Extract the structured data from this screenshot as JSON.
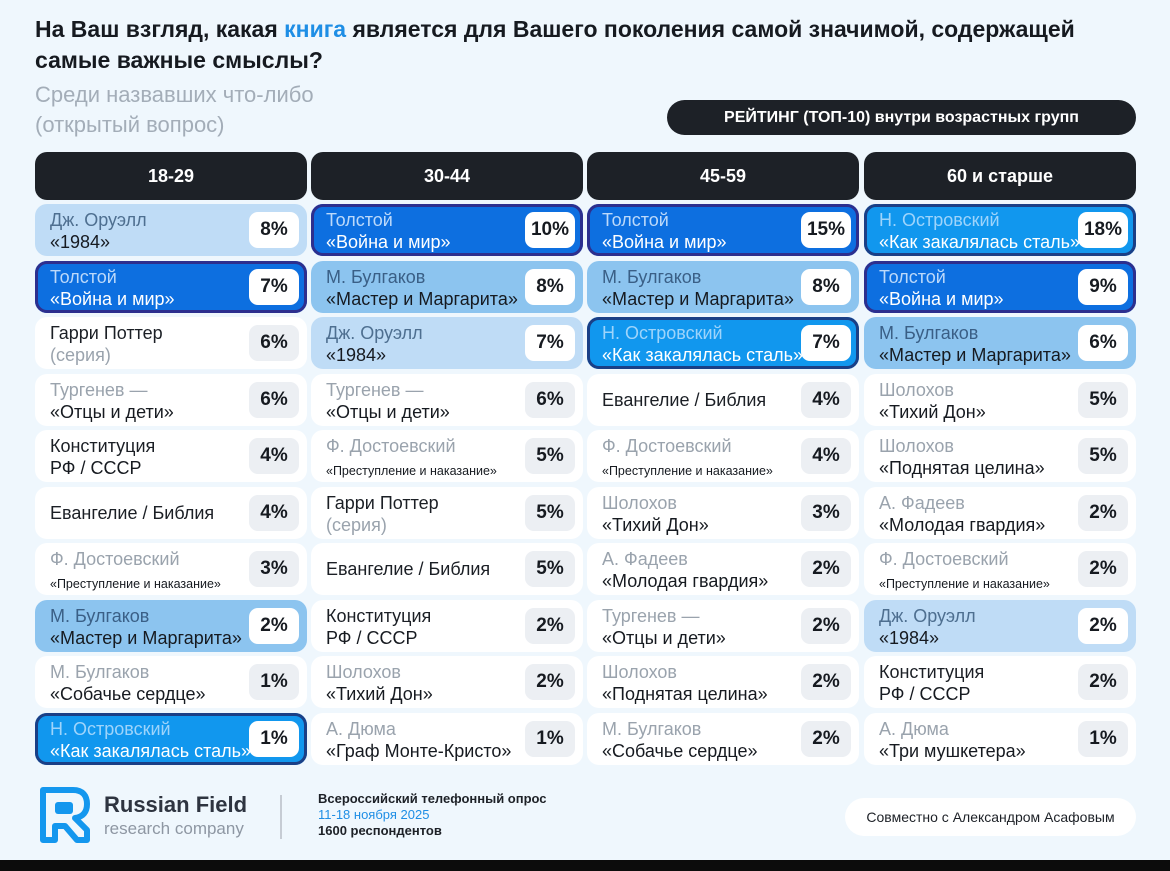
{
  "title_parts": [
    "На Ваш взгляд, какая ",
    "книга",
    " является для Вашего поколения самой значимой, содержащей самые важные смыслы?"
  ],
  "subtitle_line1": "Среди назвавших что-либо",
  "subtitle_line2": "(открытый вопрос)",
  "ranking_label": "РЕЙТИНГ (ТОП-10) внутри возрастных групп",
  "colors": {
    "accent": "#1e8ee5",
    "dark": "#1d2127",
    "orwell": "#bfdcf6",
    "tolstoy": "#0d6fe0",
    "bulgakov": "#8cc4ef",
    "ostrovsky": "#1197ee"
  },
  "chart_data": {
    "type": "table",
    "groups": [
      {
        "name": "18-29",
        "rows": [
          {
            "l1": "Дж. Оруэлл",
            "l2": "«1984»",
            "pct": "8%",
            "value": 8,
            "hl": "orwell"
          },
          {
            "l1": "Толстой",
            "l2": "«Война и мир»",
            "pct": "7%",
            "value": 7,
            "hl": "tolstoy"
          },
          {
            "l1": "Гарри Поттер",
            "l2": "(серия)",
            "pct": "6%",
            "value": 6,
            "style": "s1"
          },
          {
            "l1": "Тургенев —",
            "l2": "«Отцы и дети»",
            "pct": "6%",
            "value": 6
          },
          {
            "l1": "Конституция",
            "l2": "РФ / СССР",
            "pct": "4%",
            "value": 4,
            "style": "s0"
          },
          {
            "l1": "Евангелие / Библия",
            "l2": "",
            "pct": "4%",
            "value": 4,
            "style": "one"
          },
          {
            "l1": "Ф. Достоевский",
            "l2": "«Преступление и наказание»",
            "pct": "3%",
            "value": 3,
            "small": true
          },
          {
            "l1": "М. Булгаков",
            "l2": "«Мастер и Маргарита»",
            "pct": "2%",
            "value": 2,
            "hl": "bulg"
          },
          {
            "l1": "М. Булгаков",
            "l2": "«Собачье сердце»",
            "pct": "1%",
            "value": 1
          },
          {
            "l1": "Н. Островский",
            "l2": "«Как закалялась сталь»",
            "pct": "1%",
            "value": 1,
            "hl": "ostr"
          }
        ]
      },
      {
        "name": "30-44",
        "rows": [
          {
            "l1": "Толстой",
            "l2": "«Война и мир»",
            "pct": "10%",
            "value": 10,
            "hl": "tolstoy"
          },
          {
            "l1": "М. Булгаков",
            "l2": "«Мастер и Маргарита»",
            "pct": "8%",
            "value": 8,
            "hl": "bulg"
          },
          {
            "l1": "Дж. Оруэлл",
            "l2": "«1984»",
            "pct": "7%",
            "value": 7,
            "hl": "orwell"
          },
          {
            "l1": "Тургенев —",
            "l2": "«Отцы и дети»",
            "pct": "6%",
            "value": 6
          },
          {
            "l1": "Ф. Достоевский",
            "l2": "«Преступление и наказание»",
            "pct": "5%",
            "value": 5,
            "small": true
          },
          {
            "l1": "Гарри Поттер",
            "l2": "(серия)",
            "pct": "5%",
            "value": 5,
            "style": "s1"
          },
          {
            "l1": "Евангелие / Библия",
            "l2": "",
            "pct": "5%",
            "value": 5,
            "style": "one"
          },
          {
            "l1": "Конституция",
            "l2": "РФ / СССР",
            "pct": "2%",
            "value": 2,
            "style": "s0"
          },
          {
            "l1": "Шолохов",
            "l2": "«Тихий Дон»",
            "pct": "2%",
            "value": 2
          },
          {
            "l1": "А. Дюма",
            "l2": "«Граф Монте-Кристо»",
            "pct": "1%",
            "value": 1
          }
        ]
      },
      {
        "name": "45-59",
        "rows": [
          {
            "l1": "Толстой",
            "l2": "«Война и мир»",
            "pct": "15%",
            "value": 15,
            "hl": "tolstoy"
          },
          {
            "l1": "М. Булгаков",
            "l2": "«Мастер и Маргарита»",
            "pct": "8%",
            "value": 8,
            "hl": "bulg"
          },
          {
            "l1": "Н. Островский",
            "l2": "«Как закалялась сталь»",
            "pct": "7%",
            "value": 7,
            "hl": "ostr"
          },
          {
            "l1": "Евангелие / Библия",
            "l2": "",
            "pct": "4%",
            "value": 4,
            "style": "one"
          },
          {
            "l1": "Ф. Достоевский",
            "l2": "«Преступление и наказание»",
            "pct": "4%",
            "value": 4,
            "small": true
          },
          {
            "l1": "Шолохов",
            "l2": "«Тихий Дон»",
            "pct": "3%",
            "value": 3
          },
          {
            "l1": "А. Фадеев",
            "l2": "«Молодая гвардия»",
            "pct": "2%",
            "value": 2
          },
          {
            "l1": "Тургенев —",
            "l2": "«Отцы и дети»",
            "pct": "2%",
            "value": 2
          },
          {
            "l1": "Шолохов",
            "l2": "«Поднятая целина»",
            "pct": "2%",
            "value": 2
          },
          {
            "l1": "М. Булгаков",
            "l2": "«Собачье сердце»",
            "pct": "2%",
            "value": 2
          }
        ]
      },
      {
        "name": "60 и старше",
        "rows": [
          {
            "l1": "Н. Островский",
            "l2": "«Как закалялась сталь»",
            "pct": "18%",
            "value": 18,
            "hl": "ostr"
          },
          {
            "l1": "Толстой",
            "l2": "«Война и мир»",
            "pct": "9%",
            "value": 9,
            "hl": "tolstoy"
          },
          {
            "l1": "М. Булгаков",
            "l2": "«Мастер и Маргарита»",
            "pct": "6%",
            "value": 6,
            "hl": "bulg"
          },
          {
            "l1": "Шолохов",
            "l2": "«Тихий Дон»",
            "pct": "5%",
            "value": 5
          },
          {
            "l1": "Шолохов",
            "l2": "«Поднятая целина»",
            "pct": "5%",
            "value": 5
          },
          {
            "l1": "А. Фадеев",
            "l2": "«Молодая гвардия»",
            "pct": "2%",
            "value": 2
          },
          {
            "l1": "Ф. Достоевский",
            "l2": "«Преступление и наказание»",
            "pct": "2%",
            "value": 2,
            "small": true
          },
          {
            "l1": "Дж. Оруэлл",
            "l2": "«1984»",
            "pct": "2%",
            "value": 2,
            "hl": "orwell"
          },
          {
            "l1": "Конституция",
            "l2": "РФ / СССР",
            "pct": "2%",
            "value": 2,
            "style": "s0"
          },
          {
            "l1": "А. Дюма",
            "l2": "«Три мушкетера»",
            "pct": "1%",
            "value": 1
          }
        ]
      }
    ]
  },
  "footer": {
    "brand_name": "Russian Field",
    "brand_sub": "research company",
    "survey_line1": "Всероссийский телефонный опрос",
    "survey_dates": "11-18 ноября 2025",
    "survey_line3": "1600 респондентов",
    "partner": "Совместно с Александром Асафовым",
    "logo_icon": "rf-logo-icon"
  }
}
